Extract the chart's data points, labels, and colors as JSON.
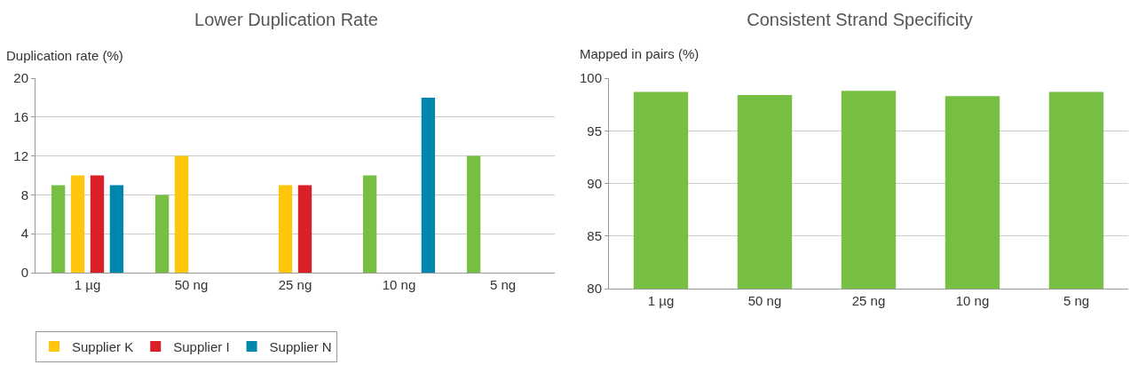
{
  "chart_data": [
    {
      "type": "bar",
      "title": "Lower Duplication Rate",
      "ylabel": "Duplication rate (%)",
      "categories": [
        "1 µg",
        "50 ng",
        "25 ng",
        "10 ng",
        "5 ng"
      ],
      "series": [
        {
          "color": "#77bf43",
          "values": [
            9,
            8,
            null,
            10,
            12
          ]
        },
        {
          "name": "Supplier K",
          "color": "#ffc60b",
          "values": [
            10,
            12,
            9,
            null,
            null
          ]
        },
        {
          "name": "Supplier I",
          "color": "#da1f28",
          "values": [
            10,
            null,
            9,
            null,
            null
          ]
        },
        {
          "name": "Supplier N",
          "color": "#0087ad",
          "values": [
            9,
            null,
            null,
            18,
            null
          ]
        }
      ],
      "ylim": [
        0,
        20
      ],
      "yticks": [
        0,
        4,
        8,
        12,
        16,
        20
      ],
      "grid": "y",
      "legend": "bottom left"
    },
    {
      "type": "bar",
      "title": "Consistent Strand Specificity",
      "ylabel": "Mapped in pairs (%)",
      "categories": [
        "1 µg",
        "50 ng",
        "25 ng",
        "10 ng",
        "5 ng"
      ],
      "series": [
        {
          "color": "#77bf43",
          "values": [
            98.7,
            98.4,
            98.8,
            98.3,
            98.7
          ]
        }
      ],
      "ylim": [
        80,
        100
      ],
      "yticks": [
        80,
        85,
        90,
        95,
        100
      ],
      "grid": "y",
      "legend": false
    }
  ]
}
